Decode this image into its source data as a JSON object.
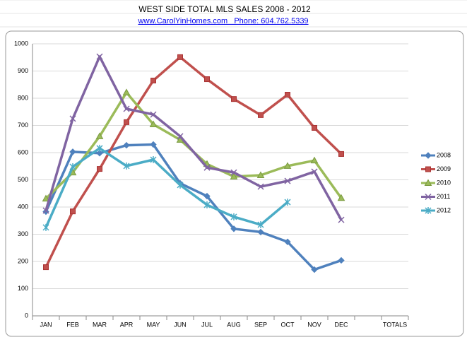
{
  "chart_data": {
    "type": "line",
    "title": "WEST SIDE TOTAL MLS SALES 2008 - 2012",
    "subtitle": "www.CarolYinHomes.com   Phone: 604.762.5339",
    "categories": [
      "JAN",
      "FEB",
      "MAR",
      "APR",
      "MAY",
      "JUN",
      "JUL",
      "AUG",
      "SEP",
      "OCT",
      "NOV",
      "DEC",
      null,
      "TOTALS"
    ],
    "series": [
      {
        "name": "2008",
        "color": "#4f81bd",
        "marker": "diamond",
        "values": [
          383,
          603,
          598,
          627,
          630,
          487,
          440,
          320,
          308,
          272,
          170,
          204,
          null,
          null
        ]
      },
      {
        "name": "2009",
        "color": "#c0504d",
        "marker": "square",
        "values": [
          179,
          384,
          540,
          712,
          865,
          951,
          870,
          797,
          738,
          813,
          691,
          595,
          null,
          null
        ]
      },
      {
        "name": "2010",
        "color": "#9bbb59",
        "marker": "triangle",
        "values": [
          431,
          527,
          660,
          821,
          704,
          647,
          558,
          512,
          517,
          551,
          571,
          433,
          null,
          null
        ]
      },
      {
        "name": "2011",
        "color": "#8064a2",
        "marker": "x",
        "values": [
          387,
          725,
          953,
          761,
          740,
          660,
          545,
          527,
          475,
          496,
          530,
          353,
          null,
          null
        ]
      },
      {
        "name": "2012",
        "color": "#4bacc6",
        "marker": "star",
        "values": [
          325,
          548,
          616,
          551,
          574,
          481,
          408,
          364,
          335,
          418,
          null,
          null,
          null,
          null
        ]
      }
    ],
    "ylim": [
      0,
      1000
    ],
    "yticks": [
      0,
      100,
      200,
      300,
      400,
      500,
      600,
      700,
      800,
      900,
      1000
    ],
    "grid": true,
    "legend": "right"
  }
}
